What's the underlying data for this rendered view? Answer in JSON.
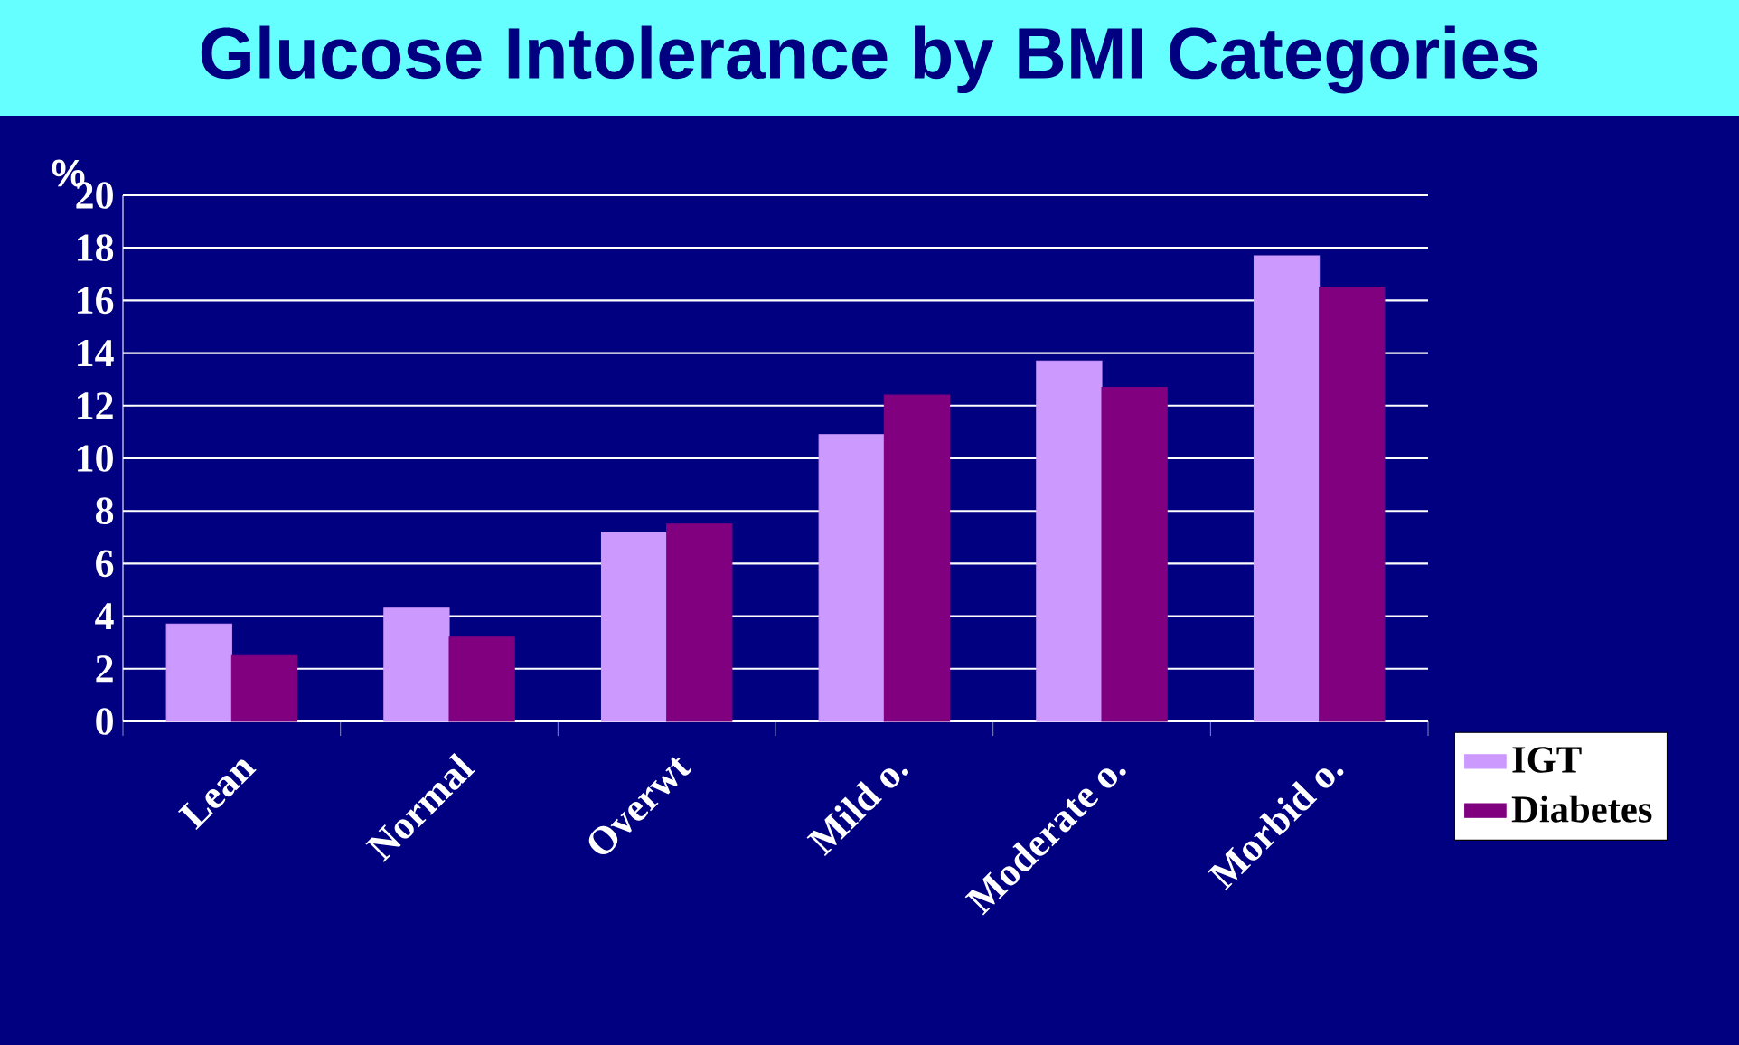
{
  "chart_data": {
    "type": "bar",
    "title": "Glucose Intolerance by BMI Categories",
    "ylabel": "%",
    "categories": [
      "Lean",
      "Normal",
      "Overwt",
      "Mild o.",
      "Moderate o.",
      "Morbid o."
    ],
    "series": [
      {
        "name": "IGT",
        "color": "#cc99ff",
        "values": [
          3.7,
          4.3,
          7.2,
          10.9,
          13.7,
          17.7
        ]
      },
      {
        "name": "Diabetes",
        "color": "#800080",
        "values": [
          2.5,
          3.2,
          7.5,
          12.4,
          12.7,
          16.5
        ]
      }
    ],
    "ylim": [
      0,
      20
    ],
    "yticks": [
      0,
      2,
      4,
      6,
      8,
      10,
      12,
      14,
      16,
      18,
      20
    ],
    "grid": "y",
    "legend": "bottom right"
  }
}
